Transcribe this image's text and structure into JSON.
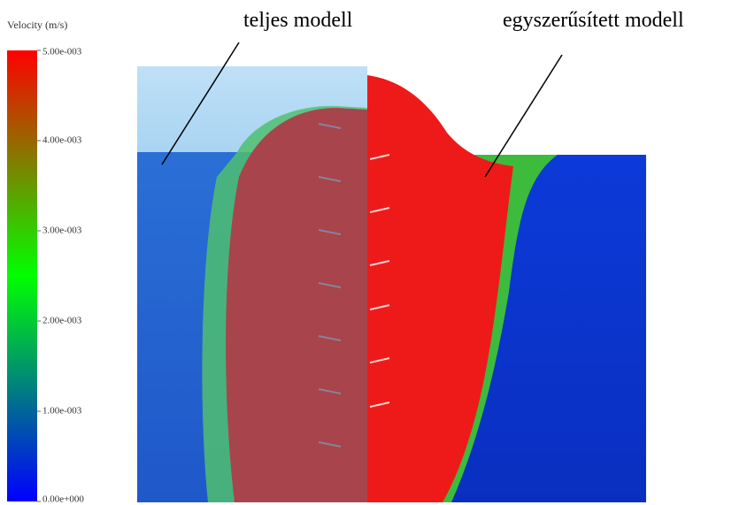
{
  "annotations": {
    "left": "teljes modell",
    "right": "egyszerűsített modell"
  },
  "colorbar": {
    "title": "Velocity (m/s)",
    "range": [
      0,
      0.005
    ],
    "colors": [
      "#0000ff",
      "#00ff00",
      "#ff0000"
    ],
    "ticks": [
      {
        "value": 0.005,
        "label": "5.00e-003"
      },
      {
        "value": 0.004,
        "label": "4.00e-003"
      },
      {
        "value": 0.003,
        "label": "3.00e-003"
      },
      {
        "value": 0.002,
        "label": "2.00e-003"
      },
      {
        "value": 0.001,
        "label": "1.00e-003"
      },
      {
        "value": 0,
        "label": "0.00e+000"
      }
    ]
  }
}
